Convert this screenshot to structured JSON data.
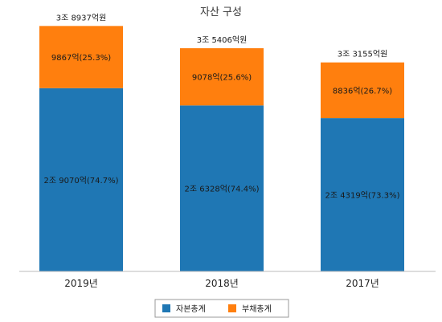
{
  "chart_data": {
    "type": "bar",
    "stacked": true,
    "title": "자산 구성",
    "categories": [
      "2019년",
      "2018년",
      "2017년"
    ],
    "series": [
      {
        "name": "자본총계",
        "color": "#1f77b4",
        "values": [
          29070,
          26328,
          24319
        ],
        "labels": [
          "2조 9070억(74.7%)",
          "2조 6328억(74.4%)",
          "2조 4319억(73.3%)"
        ]
      },
      {
        "name": "부채총계",
        "color": "#ff7f0e",
        "values": [
          9867,
          9078,
          8836
        ],
        "labels": [
          "9867억(25.3%)",
          "9078억(25.6%)",
          "8836억(26.7%)"
        ]
      }
    ],
    "totals": [
      "3조 8937억원",
      "3조 5406억원",
      "3조 3155억원"
    ],
    "total_values": [
      38937,
      35406,
      33155
    ],
    "ylim": [
      0,
      40000
    ],
    "grid": false,
    "legend_position": "bottom-center",
    "xlabel": "",
    "ylabel": ""
  }
}
